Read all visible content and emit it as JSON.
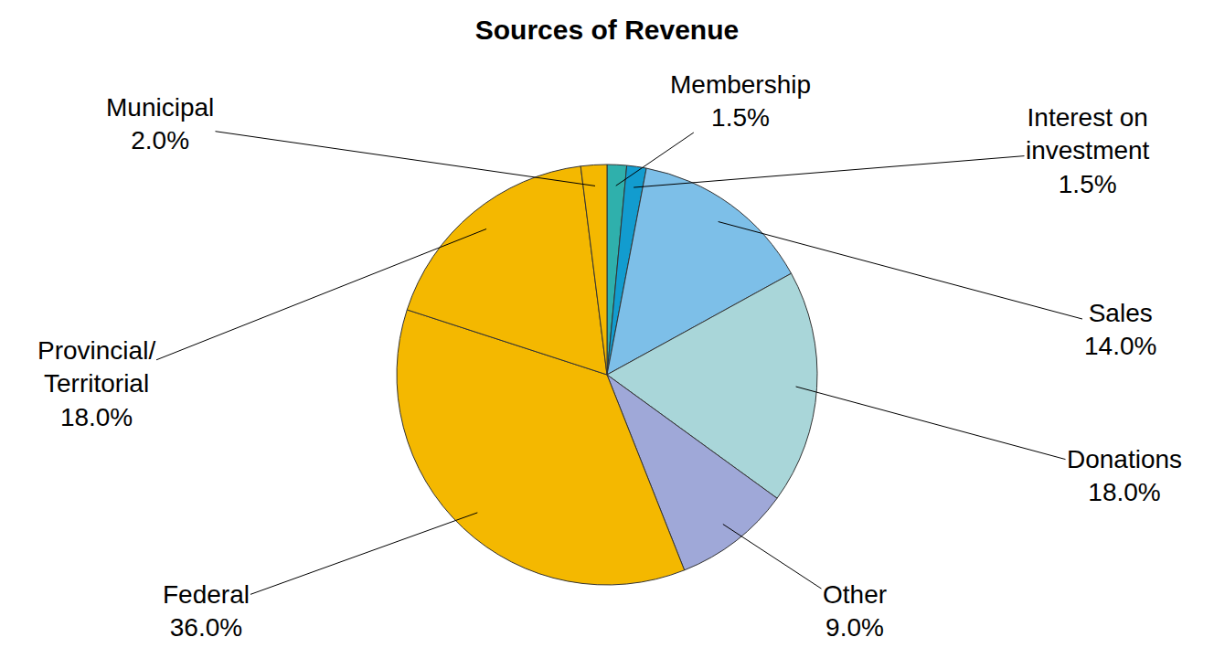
{
  "chart_data": {
    "type": "pie",
    "title": "Sources of Revenue",
    "categories": [
      "Membership",
      "Interest on investment",
      "Sales",
      "Donations",
      "Other",
      "Federal",
      "Provincial/Territorial",
      "Municipal"
    ],
    "values": [
      1.5,
      1.5,
      14.0,
      18.0,
      9.0,
      36.0,
      18.0,
      2.0
    ],
    "value_labels": [
      "1.5%",
      "1.5%",
      "14.0%",
      "18.0%",
      "9.0%",
      "36.0%",
      "18.0%",
      "2.0%"
    ],
    "colors": [
      "#2fb0ac",
      "#129ccf",
      "#7dbfe8",
      "#a9d6d9",
      "#9fa8d8",
      "#f4b800",
      "#f4b800",
      "#f4b800"
    ],
    "data_labels": true
  }
}
